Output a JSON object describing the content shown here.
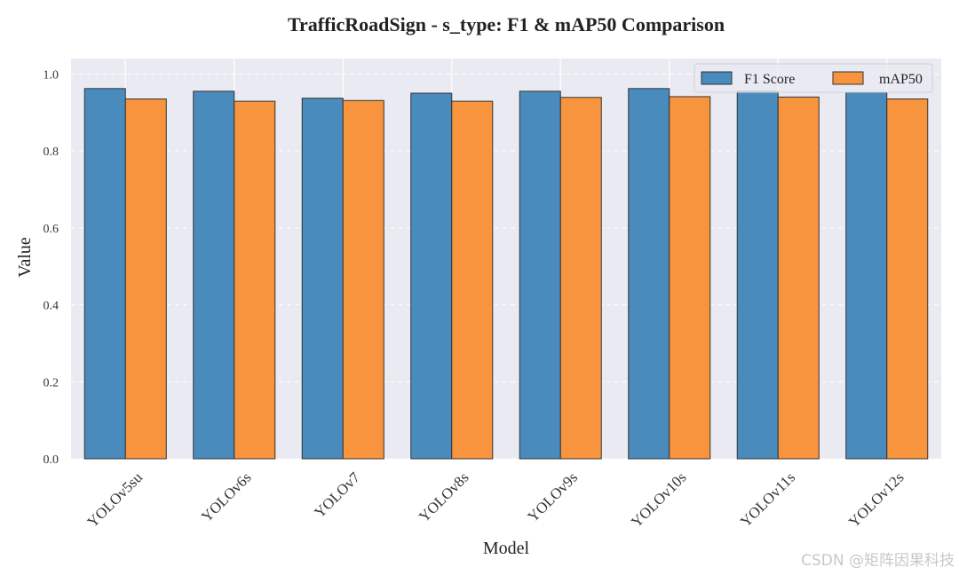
{
  "chart_data": {
    "type": "bar",
    "title": "TrafficRoadSign - s_type: F1 & mAP50 Comparison",
    "xlabel": "Model",
    "ylabel": "Value",
    "ylim": [
      0,
      1.04
    ],
    "yticks": [
      "0.0",
      "0.2",
      "0.4",
      "0.6",
      "0.8",
      "1.0"
    ],
    "grid": true,
    "legend_position": "top-right",
    "categories": [
      "YOLOv5su",
      "YOLOv6s",
      "YOLOv7",
      "YOLOv8s",
      "YOLOv9s",
      "YOLOv10s",
      "YOLOv11s",
      "YOLOv12s"
    ],
    "series": [
      {
        "name": "F1 Score",
        "color": "#4a8bbd",
        "values": [
          0.962,
          0.955,
          0.937,
          0.95,
          0.955,
          0.962,
          0.955,
          0.952
        ]
      },
      {
        "name": "mAP50",
        "color": "#f8943d",
        "values": [
          0.935,
          0.929,
          0.931,
          0.929,
          0.939,
          0.941,
          0.94,
          0.935
        ]
      }
    ]
  },
  "watermark": "CSDN @矩阵因果科技",
  "colors": {
    "plot_background": "#eaeaf2",
    "grid": "#ffffff",
    "bar_edge": "#333333"
  }
}
